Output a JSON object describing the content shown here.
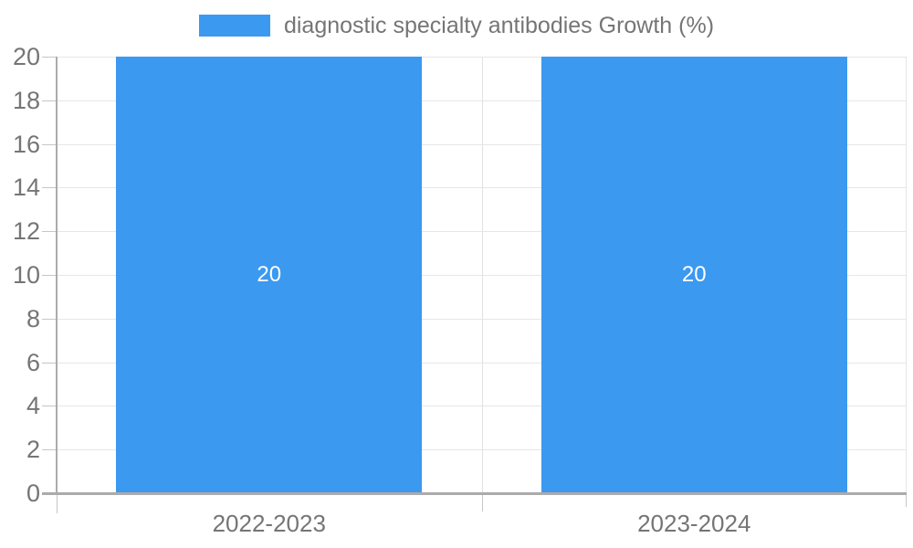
{
  "chart_data": {
    "type": "bar",
    "title": "",
    "legend": {
      "label": "diagnostic specialty antibodies Growth (%)",
      "position": "top"
    },
    "categories": [
      "2022-2023",
      "2023-2024"
    ],
    "series": [
      {
        "name": "diagnostic specialty antibodies Growth (%)",
        "values": [
          20,
          20
        ],
        "value_labels": [
          "20",
          "20"
        ]
      }
    ],
    "xlabel": "",
    "ylabel": "",
    "ylim": [
      0,
      20
    ],
    "yticks": [
      0,
      2,
      4,
      6,
      8,
      10,
      12,
      14,
      16,
      18,
      20
    ],
    "grid": true,
    "bar_width_fraction": 0.72
  },
  "colors": {
    "bar": "#3B99F0",
    "value_label": "#FFFFFF",
    "axis_text": "#757575",
    "legend_text": "#757575",
    "gridline": "#E6E6E6",
    "category_gridline": "#E2E2E2",
    "axis_line": "#ABABAB",
    "tick": "#C6C6C6"
  }
}
